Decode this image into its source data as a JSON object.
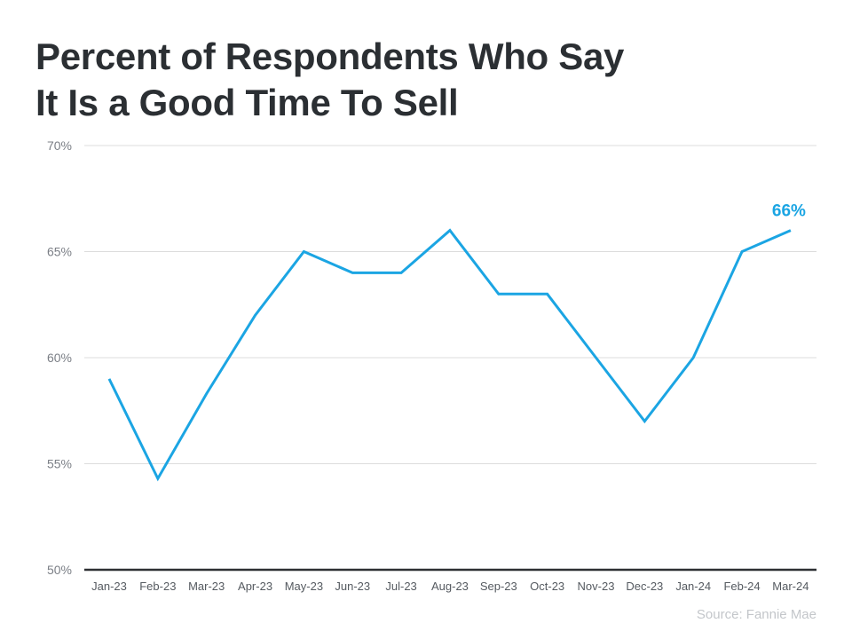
{
  "chart_data": {
    "type": "line",
    "title": [
      "Percent of Respondents Who Say",
      "It Is a Good Time To Sell"
    ],
    "categories": [
      "Jan-23",
      "Feb-23",
      "Mar-23",
      "Apr-23",
      "May-23",
      "Jun-23",
      "Jul-23",
      "Aug-23",
      "Sep-23",
      "Oct-23",
      "Nov-23",
      "Dec-23",
      "Jan-24",
      "Feb-24",
      "Mar-24"
    ],
    "series": [
      {
        "values": [
          59,
          54.3,
          58.3,
          62,
          65,
          64,
          64,
          66,
          63,
          63,
          60,
          57,
          60,
          65,
          66
        ]
      }
    ],
    "ylim": [
      50,
      70
    ],
    "yticks": [
      50,
      55,
      60,
      65,
      70
    ],
    "ytick_labels": [
      "50%",
      "55%",
      "60%",
      "65%",
      "70%"
    ],
    "grid": true,
    "annotation": {
      "category": "Mar-24",
      "label": "66%"
    },
    "line_color": "#1ba5e3"
  },
  "source": "Source: Fannie Mae"
}
